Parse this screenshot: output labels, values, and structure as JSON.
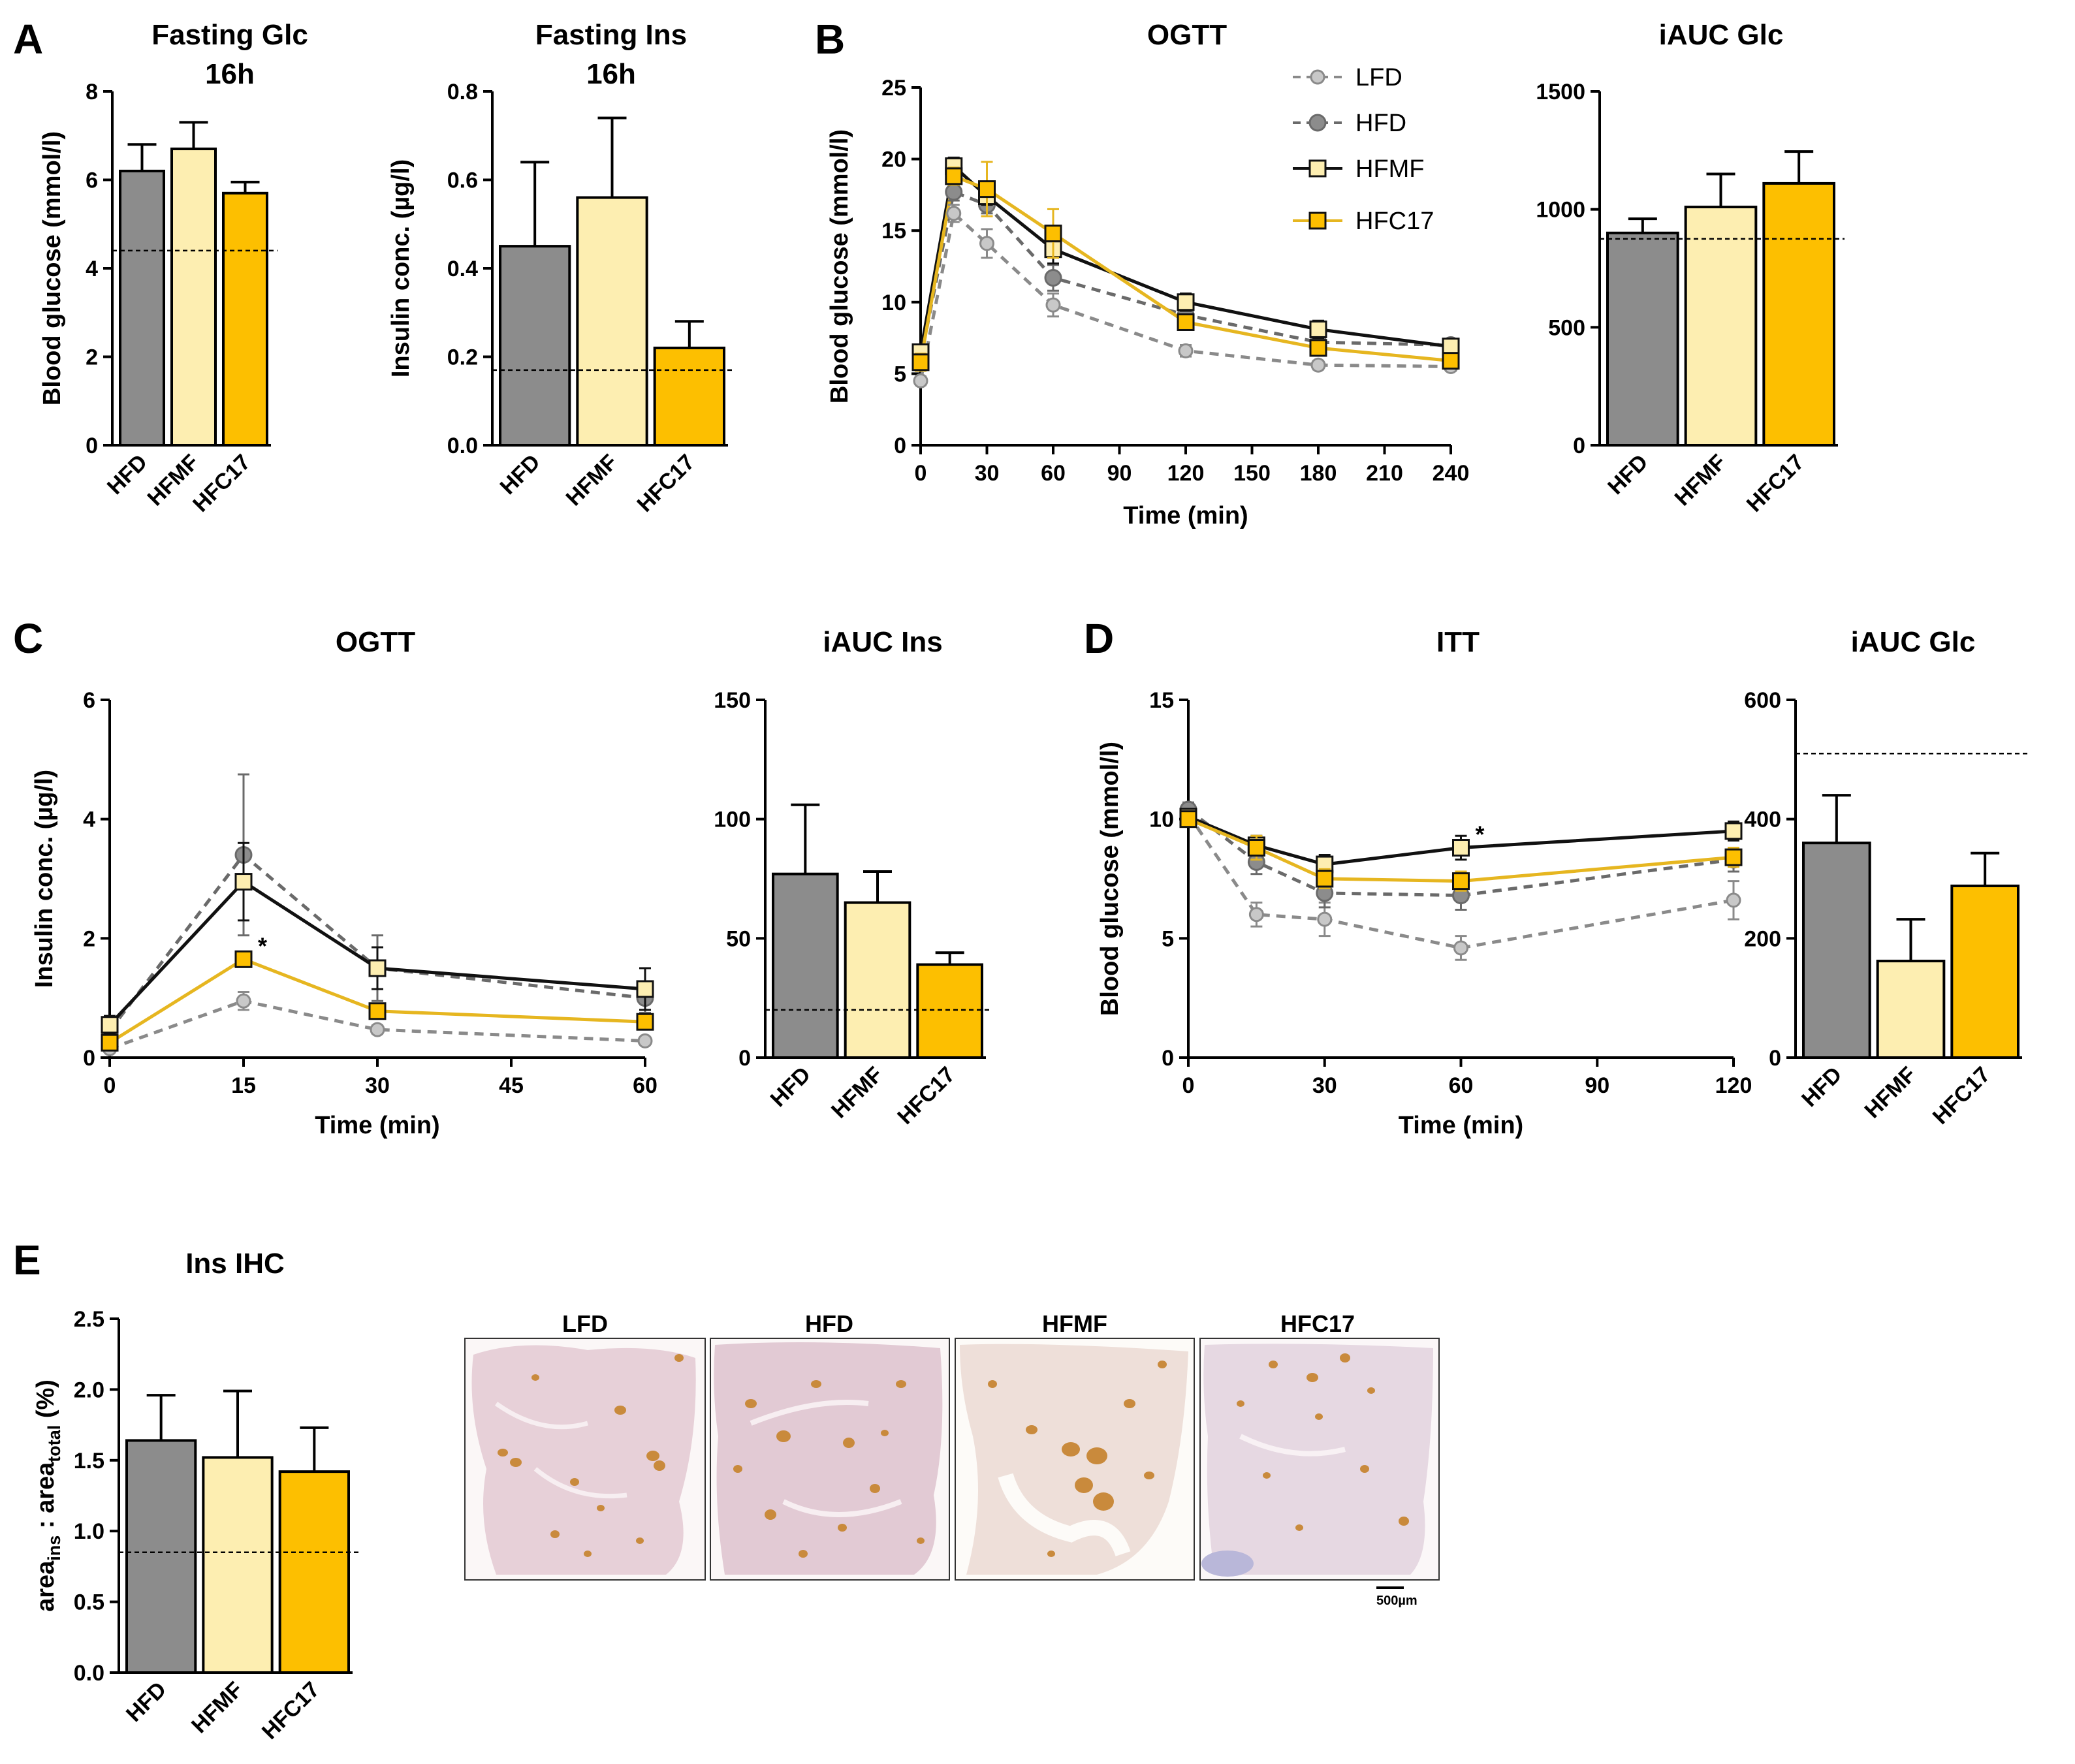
{
  "panel_letters": [
    "A",
    "B",
    "C",
    "D",
    "E"
  ],
  "colors": {
    "LFD": "#c8c8c8",
    "HFD": "#8c8c8c",
    "HFMF": "#fdeeb1",
    "HFC17": "#fdbf00",
    "LFD_line": "#8a8a8a",
    "HFD_line": "#6a6a6a",
    "HFMF_line": "#111111",
    "HFC17_line": "#e6b620"
  },
  "legend": [
    "LFD",
    "HFD",
    "HFMF",
    "HFC17"
  ],
  "chart_data": [
    {
      "id": "fasting-glc",
      "type": "bar",
      "title": "Fasting Glc",
      "subtitle": "16h",
      "ylabel": "Blood glucose (mmol/l)",
      "ylim": [
        0,
        8
      ],
      "yticks": [
        "0",
        "2",
        "4",
        "6",
        "8"
      ],
      "categories": [
        "HFD",
        "HFMF",
        "HFC17"
      ],
      "values": [
        6.2,
        6.7,
        5.7
      ],
      "errors": [
        0.6,
        0.6,
        0.25
      ],
      "ref_line": 4.4
    },
    {
      "id": "fasting-ins",
      "type": "bar",
      "title": "Fasting Ins",
      "subtitle": "16h",
      "ylabel": "Insulin conc. (µg/l)",
      "ylim": [
        0,
        0.8
      ],
      "yticks": [
        "0.0",
        "0.2",
        "0.4",
        "0.6",
        "0.8"
      ],
      "categories": [
        "HFD",
        "HFMF",
        "HFC17"
      ],
      "values": [
        0.45,
        0.56,
        0.22
      ],
      "errors": [
        0.19,
        0.18,
        0.06
      ],
      "ref_line": 0.17
    },
    {
      "id": "ogtt-glc",
      "type": "line",
      "title": "OGTT",
      "ylabel": "Blood glucose (mmol/l)",
      "xlabel": "Time (min)",
      "xlim": [
        0,
        240
      ],
      "ylim": [
        0,
        25
      ],
      "xticks": [
        "0",
        "30",
        "60",
        "90",
        "120",
        "150",
        "180",
        "210",
        "240"
      ],
      "yticks": [
        "0",
        "5",
        "10",
        "15",
        "20",
        "25"
      ],
      "x": [
        0,
        15,
        30,
        60,
        120,
        180,
        240
      ],
      "series": [
        {
          "name": "LFD",
          "values": [
            4.5,
            16.2,
            14.1,
            9.8,
            6.6,
            5.6,
            5.5
          ],
          "errors": [
            0.3,
            0.6,
            1.0,
            0.8,
            0.4,
            0.3,
            0.3
          ]
        },
        {
          "name": "HFD",
          "values": [
            6.0,
            17.7,
            16.8,
            11.7,
            9.1,
            7.2,
            7.0
          ],
          "errors": [
            0.5,
            0.6,
            0.6,
            0.9,
            0.5,
            0.4,
            0.4
          ]
        },
        {
          "name": "HFMF",
          "values": [
            6.5,
            19.5,
            17.4,
            13.7,
            10.0,
            8.1,
            6.9
          ],
          "errors": [
            0.5,
            0.6,
            0.6,
            1.0,
            0.6,
            0.6,
            0.5
          ]
        },
        {
          "name": "HFC17",
          "values": [
            5.8,
            18.8,
            17.9,
            14.8,
            8.6,
            6.8,
            5.9
          ],
          "errors": [
            0.6,
            0.6,
            1.9,
            1.7,
            0.5,
            0.5,
            0.5
          ]
        }
      ]
    },
    {
      "id": "iauc-glc-ogtt",
      "type": "bar",
      "title": "iAUC Glc",
      "ylim": [
        0,
        1500
      ],
      "yticks": [
        "0",
        "500",
        "1000",
        "1500"
      ],
      "categories": [
        "HFD",
        "HFMF",
        "HFC17"
      ],
      "values": [
        900,
        1010,
        1110
      ],
      "errors": [
        60,
        140,
        135
      ],
      "ref_line": 875
    },
    {
      "id": "ogtt-ins",
      "type": "line",
      "title": "OGTT",
      "ylabel": "Insulin conc. (µg/l)",
      "xlabel": "Time (min)",
      "xlim": [
        0,
        60
      ],
      "ylim": [
        0,
        6
      ],
      "xticks": [
        "0",
        "15",
        "30",
        "45",
        "60"
      ],
      "yticks": [
        "0",
        "2",
        "4",
        "6"
      ],
      "x": [
        0,
        15,
        30,
        60
      ],
      "series": [
        {
          "name": "LFD",
          "values": [
            0.15,
            0.95,
            0.47,
            0.28
          ],
          "errors": [
            0.05,
            0.15,
            0.07,
            0.05
          ]
        },
        {
          "name": "HFD",
          "values": [
            0.45,
            3.4,
            1.5,
            1.0
          ],
          "errors": [
            0.15,
            1.35,
            0.55,
            0.25
          ]
        },
        {
          "name": "HFMF",
          "values": [
            0.55,
            2.95,
            1.5,
            1.15
          ],
          "errors": [
            0.15,
            0.65,
            0.35,
            0.35
          ]
        },
        {
          "name": "HFC17",
          "values": [
            0.25,
            1.65,
            0.78,
            0.6
          ],
          "errors": [
            0.05,
            0.1,
            0.1,
            0.1
          ]
        }
      ],
      "annotations": [
        {
          "text": "*",
          "x": 15,
          "y": 1.65
        }
      ]
    },
    {
      "id": "iauc-ins",
      "type": "bar",
      "title": "iAUC Ins",
      "ylim": [
        0,
        150
      ],
      "yticks": [
        "0",
        "50",
        "100",
        "150"
      ],
      "categories": [
        "HFD",
        "HFMF",
        "HFC17"
      ],
      "values": [
        77,
        65,
        39
      ],
      "errors": [
        29,
        13,
        5
      ],
      "ref_line": 20
    },
    {
      "id": "itt",
      "type": "line",
      "title": "ITT",
      "ylabel": "Blood glucose (mmol/l)",
      "xlabel": "Time (min)",
      "xlim": [
        0,
        120
      ],
      "ylim": [
        0,
        15
      ],
      "xticks": [
        "0",
        "30",
        "60",
        "90",
        "120"
      ],
      "yticks": [
        "0",
        "5",
        "10",
        "15"
      ],
      "x": [
        0,
        15,
        30,
        60,
        120
      ],
      "series": [
        {
          "name": "LFD",
          "values": [
            10.2,
            6.0,
            5.8,
            4.6,
            6.6
          ],
          "errors": [
            0.3,
            0.5,
            0.7,
            0.5,
            0.8
          ]
        },
        {
          "name": "HFD",
          "values": [
            10.4,
            8.2,
            6.9,
            6.8,
            8.3
          ],
          "errors": [
            0.3,
            0.5,
            0.6,
            0.6,
            0.5
          ]
        },
        {
          "name": "HFMF",
          "values": [
            10.1,
            8.9,
            8.1,
            8.8,
            9.5
          ],
          "errors": [
            0.3,
            0.4,
            0.4,
            0.5,
            0.4
          ]
        },
        {
          "name": "HFC17",
          "values": [
            10.0,
            8.8,
            7.5,
            7.4,
            8.4
          ],
          "errors": [
            0.3,
            0.5,
            0.4,
            0.4,
            0.4
          ]
        }
      ],
      "annotations": [
        {
          "text": "*",
          "x": 60,
          "y": 8.8
        }
      ]
    },
    {
      "id": "iauc-glc-itt",
      "type": "bar",
      "title": "iAUC Glc",
      "ylim": [
        0,
        600
      ],
      "yticks": [
        "0",
        "200",
        "400",
        "600"
      ],
      "categories": [
        "HFD",
        "HFMF",
        "HFC17"
      ],
      "values": [
        360,
        162,
        288
      ],
      "errors": [
        80,
        70,
        55
      ],
      "ref_line": 510
    },
    {
      "id": "ins-ihc",
      "type": "bar",
      "title": "Ins IHC",
      "ylabel_parts": [
        "area",
        "ins",
        " : area",
        "total",
        " (%)"
      ],
      "ylim": [
        0,
        2.5
      ],
      "yticks": [
        "0.0",
        "0.5",
        "1.0",
        "1.5",
        "2.0",
        "2.5"
      ],
      "categories": [
        "HFD",
        "HFMF",
        "HFC17"
      ],
      "values": [
        1.64,
        1.52,
        1.42
      ],
      "errors": [
        0.32,
        0.47,
        0.31
      ],
      "ref_line": 0.85
    }
  ],
  "micrographs": {
    "labels": [
      "LFD",
      "HFD",
      "HFMF",
      "HFC17"
    ],
    "scale_bar": "500µm"
  }
}
